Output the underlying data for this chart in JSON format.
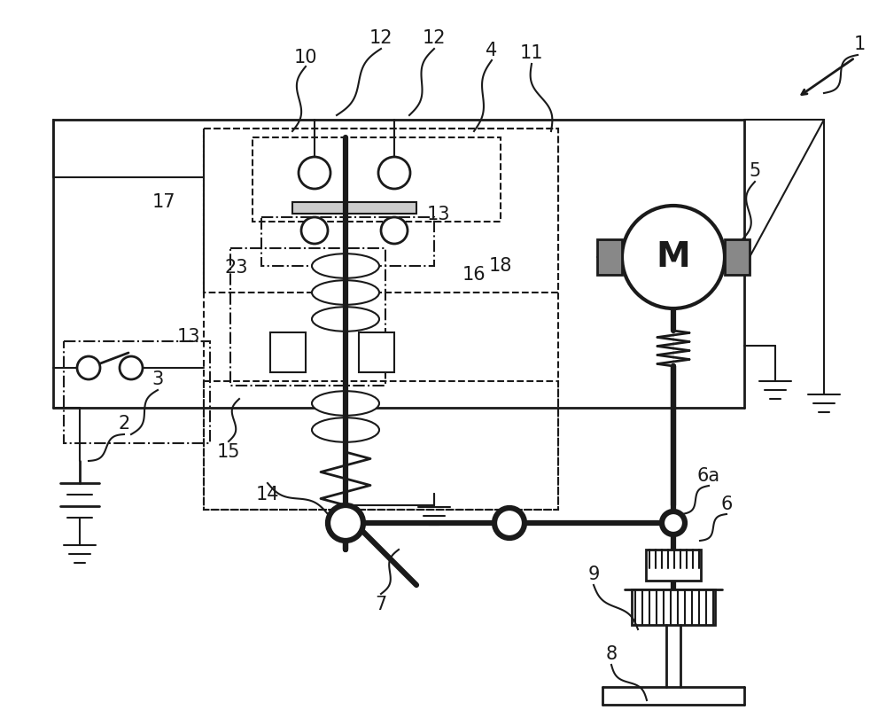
{
  "bg_color": "#ffffff",
  "line_color": "#1a1a1a",
  "figsize": [
    10.0,
    8.01
  ]
}
